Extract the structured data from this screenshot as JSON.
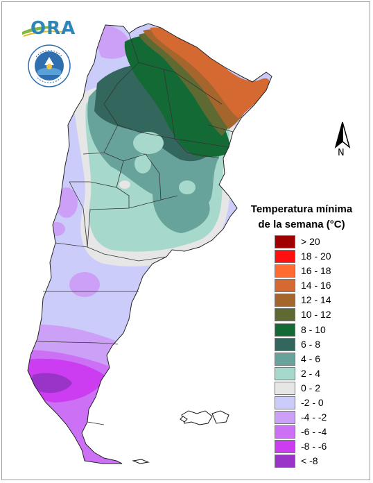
{
  "logos": {
    "ora_text": "ORA",
    "seal_name": "servicio-meteorologico-nacional-seal"
  },
  "north_arrow": {
    "label": "N"
  },
  "legend": {
    "title_line1": "Temperatura mínima",
    "title_line2": "de la semana (°C)",
    "items": [
      {
        "label": "> 20",
        "color": "#a00000"
      },
      {
        "label": "18 - 20",
        "color": "#ff1010"
      },
      {
        "label": "16 - 18",
        "color": "#ff6b30"
      },
      {
        "label": "14 - 16",
        "color": "#d46a32"
      },
      {
        "label": "12 - 14",
        "color": "#a5662e"
      },
      {
        "label": "10 - 12",
        "color": "#5f6a32"
      },
      {
        "label": "8 - 10",
        "color": "#146a34"
      },
      {
        "label": "6 - 8",
        "color": "#33675e"
      },
      {
        "label": "4 - 6",
        "color": "#67a39b"
      },
      {
        "label": "2 - 4",
        "color": "#a7d8cc"
      },
      {
        "label": "0 - 2",
        "color": "#e6e6e6"
      },
      {
        "label": "-2 - 0",
        "color": "#ccccfa"
      },
      {
        "label": "-4 - -2",
        "color": "#cca0f6"
      },
      {
        "label": "-6 - -4",
        "color": "#cc70f6"
      },
      {
        "label": "-8 - -6",
        "color": "#cc3cf0"
      },
      {
        "label": "< -8",
        "color": "#9a34c8"
      }
    ]
  }
}
